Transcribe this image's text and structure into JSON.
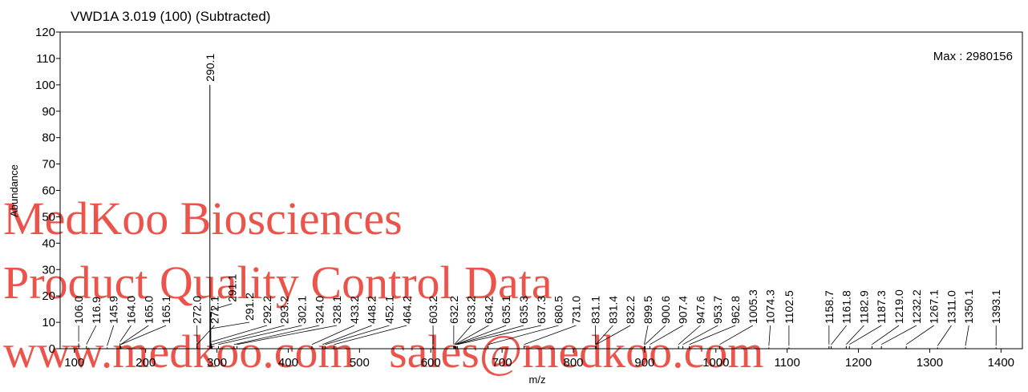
{
  "chart_data": {
    "type": "spectrum",
    "title": "VWD1A 3.019 (100) (Subtracted)",
    "annotation": "Max : 2980156",
    "x_label": "m/z",
    "y_label": "Abundance",
    "color": "#000000",
    "xlim": [
      80,
      1430
    ],
    "ylim": [
      0,
      120
    ],
    "xticks": [
      100,
      200,
      300,
      400,
      500,
      600,
      700,
      800,
      900,
      1000,
      1100,
      1200,
      1300,
      1400
    ],
    "yticks": [
      0,
      10,
      20,
      30,
      40,
      50,
      60,
      70,
      80,
      90,
      100,
      110,
      120
    ],
    "x": [
      106.0,
      116.9,
      145.9,
      164.0,
      165.0,
      165.1,
      272.0,
      272.1,
      290.1,
      291.1,
      291.2,
      292.2,
      293.2,
      302.1,
      324.0,
      328.1,
      433.2,
      448.2,
      452.1,
      464.2,
      603.2,
      632.2,
      633.2,
      634.2,
      635.1,
      635.3,
      637.3,
      680.5,
      731.0,
      831.1,
      831.4,
      832.2,
      899.5,
      900.6,
      907.4,
      947.6,
      953.7,
      962.8,
      1005.3,
      1074.3,
      1102.5,
      1158.7,
      1161.8,
      1182.9,
      1187.3,
      1219.0,
      1232.2,
      1267.1,
      1311.0,
      1350.1,
      1393.1
    ],
    "x_labels": [
      "106.0",
      "116.9",
      "145.9",
      "164.0",
      "165.0",
      "165.1",
      "272.0",
      "272.1",
      "290.1",
      "291.1",
      "291.2",
      "292.2",
      "293.2",
      "302.1",
      "324.0",
      "328.1",
      "433.2",
      "448.2",
      "452.1",
      "464.2",
      "603.2",
      "632.2",
      "633.2",
      "634.2",
      "635.1",
      "635.3",
      "637.3",
      "680.5",
      "731.0",
      "831.1",
      "831.4",
      "832.2",
      "899.5",
      "900.6",
      "907.4",
      "947.6",
      "953.7",
      "962.8",
      "1005.3",
      "1074.3",
      "1102.5",
      "1158.7",
      "1161.8",
      "1182.9",
      "1187.3",
      "1219.0",
      "1232.2",
      "1267.1",
      "1311.0",
      "1350.1",
      "1393.1"
    ],
    "values": [
      2,
      1,
      0.5,
      2,
      1,
      1,
      2,
      1,
      100,
      14,
      7,
      2,
      1,
      1,
      1,
      1,
      1,
      1,
      1,
      1,
      1,
      1,
      1,
      1,
      1,
      1,
      1,
      1,
      1,
      1,
      1,
      1,
      1,
      1,
      1,
      1,
      1,
      1,
      1,
      0.5,
      0.5,
      1,
      1,
      1,
      1,
      1,
      1,
      1,
      0.5,
      0.5,
      0.5
    ]
  },
  "watermark": [
    "MedKoo Biosciences",
    "Product Quality Control Data",
    "www.medkoo.com   sales@medkoo.com"
  ]
}
